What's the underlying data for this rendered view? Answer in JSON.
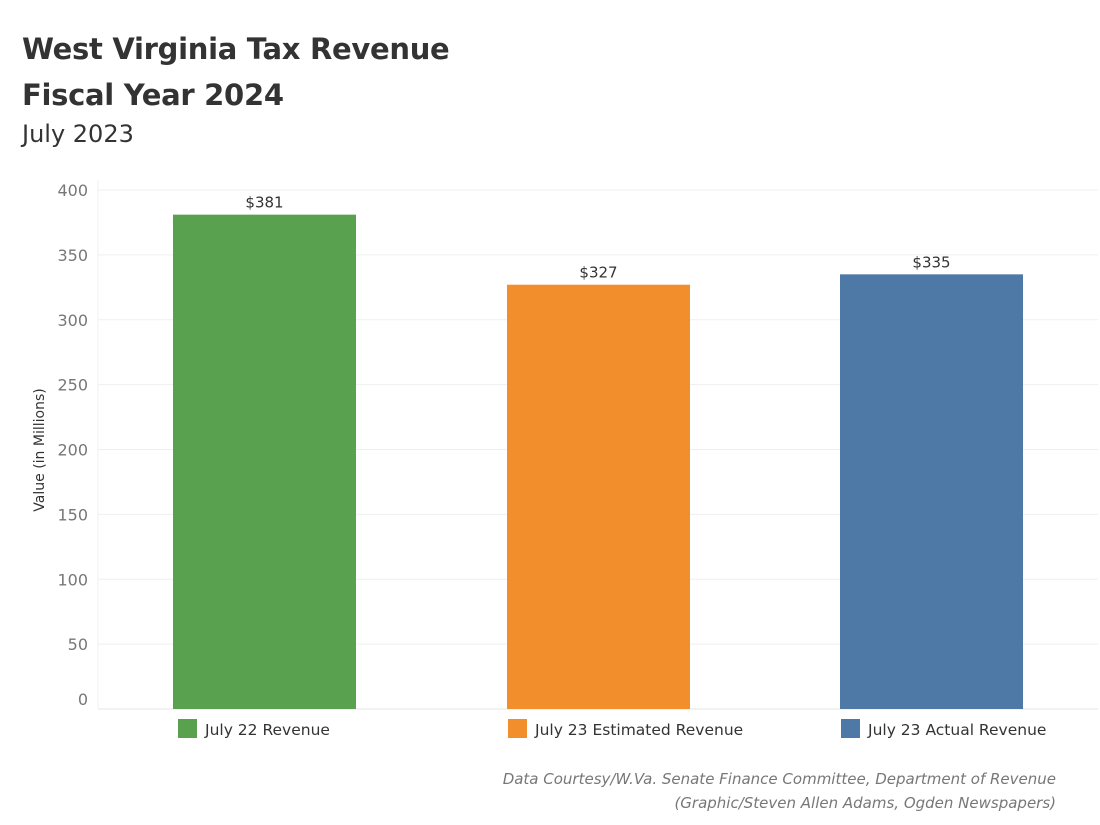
{
  "chart_data": {
    "type": "bar",
    "title": "West Virginia Tax Revenue",
    "title_line2": "Fiscal Year 2024",
    "subtitle": "July 2023",
    "xlabel": "",
    "ylabel": "Value (in Millions)",
    "ylim": [
      0,
      400
    ],
    "yticks": [
      0,
      50,
      100,
      150,
      200,
      250,
      300,
      350,
      400
    ],
    "grid": true,
    "categories": [
      "July 22 Revenue",
      "July 23 Estimated Revenue",
      "July 23 Actual Revenue"
    ],
    "values": [
      381,
      327,
      335
    ],
    "data_labels": [
      "$381",
      "$327",
      "$335"
    ],
    "colors": [
      "#59a14f",
      "#f28e2b",
      "#4e79a7"
    ],
    "legend_position": "bottom"
  },
  "footer": {
    "line1": "Data Courtesy/W.Va. Senate Finance Committee, Department of Revenue",
    "line2": "(Graphic/Steven Allen Adams, Ogden Newspapers)"
  }
}
